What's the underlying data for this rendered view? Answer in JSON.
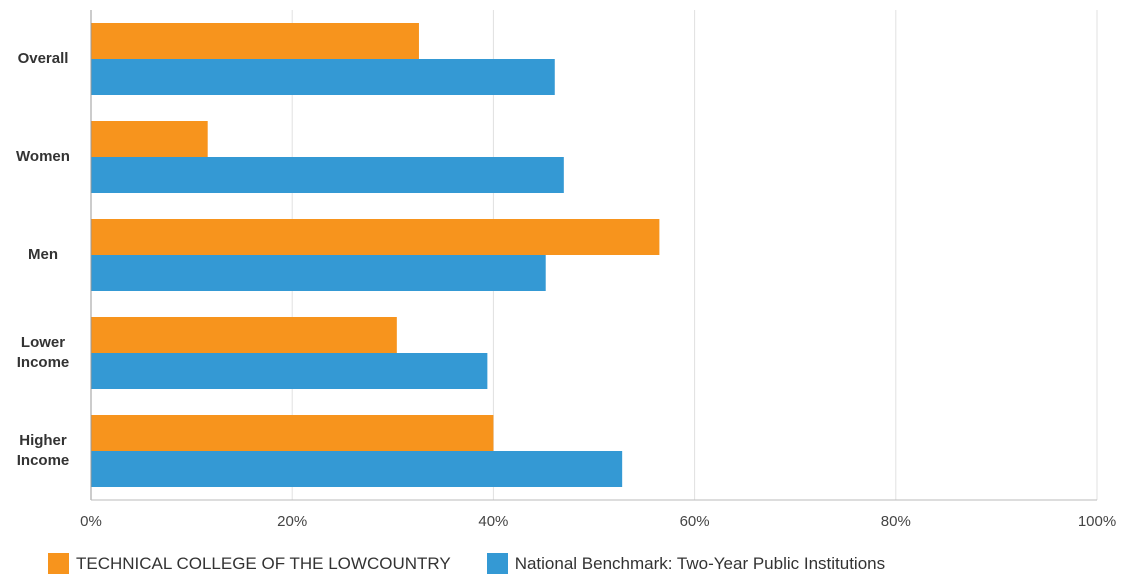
{
  "chart_data": {
    "type": "bar",
    "orientation": "horizontal",
    "categories": [
      "Overall",
      "Women",
      "Men",
      "Lower Income",
      "Higher Income"
    ],
    "category_lines": [
      [
        "Overall"
      ],
      [
        "Women"
      ],
      [
        "Men"
      ],
      [
        "Lower",
        "Income"
      ],
      [
        "Higher",
        "Income"
      ]
    ],
    "series": [
      {
        "name": "TECHNICAL COLLEGE OF THE LOWCOUNTRY",
        "color": "#F7941D",
        "values": [
          32.6,
          11.6,
          56.5,
          30.4,
          40.0
        ]
      },
      {
        "name": "National Benchmark: Two-Year Public Institutions",
        "color": "#3499D4",
        "values": [
          46.1,
          47.0,
          45.2,
          39.4,
          52.8
        ]
      }
    ],
    "xlim": [
      0,
      100
    ],
    "xticks": [
      0,
      20,
      40,
      60,
      80,
      100
    ],
    "tick_suffix": "%",
    "grid": true,
    "legend_position": "bottom",
    "title": "",
    "xlabel": "",
    "ylabel": ""
  }
}
